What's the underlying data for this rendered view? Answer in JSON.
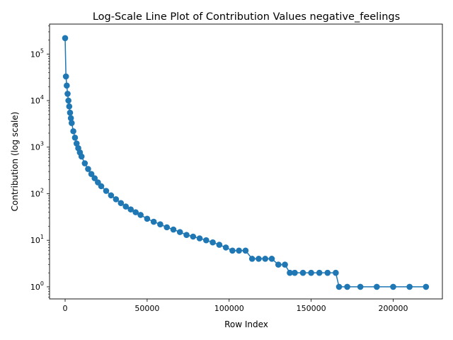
{
  "chart_data": {
    "type": "line",
    "title": "Log-Scale Line Plot of Contribution Values negative_feelings",
    "xlabel": "Row Index",
    "ylabel": "Contribution (log scale)",
    "xlim": [
      -9500,
      230000
    ],
    "ylim": [
      0.55,
      440000
    ],
    "y_scale": "log",
    "x_ticks": [
      0,
      50000,
      100000,
      150000,
      200000
    ],
    "x_tick_labels": [
      "0",
      "50000",
      "100000",
      "150000",
      "200000"
    ],
    "y_tick_labels": [
      "10^0",
      "10^1",
      "10^2",
      "10^3",
      "10^4",
      "10^5"
    ],
    "grid": false,
    "line_color": "#1f77b4",
    "marker": "circle",
    "series": [
      {
        "x": [
          0,
          500,
          1000,
          1500,
          2000,
          2500,
          3000,
          3500,
          4000,
          5000,
          6000,
          7000,
          8000,
          9000,
          10000,
          12000,
          14000,
          16000,
          18000,
          20000,
          22000,
          25000,
          28000,
          31000,
          34000,
          37000,
          40000,
          43000,
          46000,
          50000,
          54000,
          58000,
          62000,
          66000,
          70000,
          74000,
          78000,
          82000,
          86000,
          90000,
          94000,
          98000,
          102000,
          106000,
          110000,
          114000,
          118000,
          122000,
          126000,
          130000,
          134000,
          137000,
          140000,
          145000,
          150000,
          155000,
          160000,
          165000,
          167000,
          172000,
          180000,
          190000,
          200000,
          210000,
          220000
        ],
        "y": [
          220000,
          33000,
          21000,
          14000,
          10000,
          7500,
          5500,
          4200,
          3300,
          2200,
          1600,
          1200,
          950,
          770,
          630,
          450,
          340,
          265,
          215,
          175,
          145,
          115,
          92,
          76,
          63,
          53,
          46,
          40,
          35,
          29,
          25,
          22,
          19,
          17,
          15,
          13,
          12,
          11,
          10,
          9,
          8,
          7,
          6,
          6,
          6,
          4,
          4,
          4,
          4,
          3,
          3,
          2,
          2,
          2,
          2,
          2,
          2,
          2,
          1,
          1,
          1,
          1,
          1,
          1,
          1
        ]
      }
    ]
  }
}
